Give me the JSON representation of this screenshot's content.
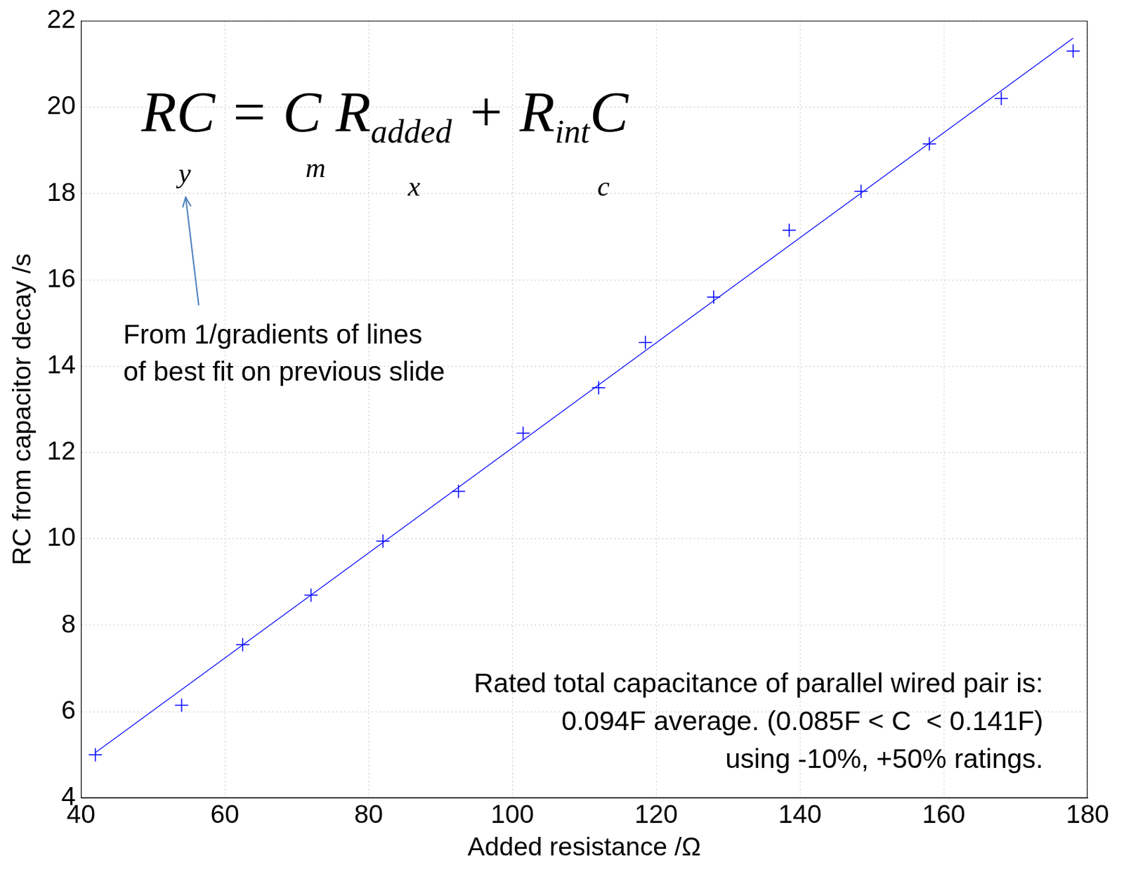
{
  "chart_data": {
    "type": "scatter",
    "x_label": "Added resistance /Ω",
    "y_label": "RC from capacitor decay /s",
    "xlim": [
      40,
      180
    ],
    "xticks": [
      40,
      60,
      80,
      100,
      120,
      140,
      160,
      180
    ],
    "ylim": [
      4,
      22
    ],
    "yticks": [
      4,
      6,
      8,
      10,
      12,
      14,
      16,
      18,
      20,
      22
    ],
    "grid": true,
    "series": [
      {
        "type": "scatter",
        "color": "#0000ff",
        "marker": "+",
        "x": [
          42,
          54,
          62.5,
          72,
          82,
          92.5,
          101.5,
          112,
          118.5,
          128,
          138.5,
          148.5,
          158,
          168,
          178
        ],
        "values": [
          5.0,
          6.15,
          7.55,
          8.7,
          9.95,
          11.1,
          12.45,
          13.5,
          14.55,
          15.6,
          17.15,
          18.05,
          19.15,
          20.2,
          21.3
        ]
      },
      {
        "type": "line",
        "color": "#0000ff",
        "line_style": "solid",
        "x": [
          42,
          178
        ],
        "values": [
          5.05,
          21.6
        ]
      }
    ],
    "annotations": {
      "equation": [
        {
          "text": "RC = C R"
        },
        {
          "sub": "added"
        },
        {
          "text": " + R"
        },
        {
          "sub": "int"
        },
        {
          "text": "C"
        }
      ],
      "symbols": [
        "y",
        "m",
        "x",
        "c"
      ],
      "note": [
        "From 1/gradients of lines",
        "of best fit on previous slide"
      ],
      "caption": [
        "Rated total capacitance of parallel wired pair is:",
        "0.094F average. (0.085F < C  < 0.141F)",
        "using -10%, +50% ratings."
      ]
    }
  }
}
